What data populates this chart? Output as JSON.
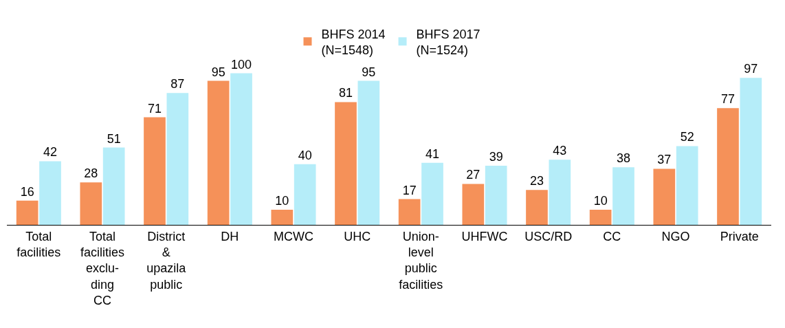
{
  "chart_data": {
    "type": "bar",
    "categories": [
      "Total\nfacilities",
      "Total\nfacilities\nexclu-\nding\nCC",
      "District\n&\nupazila\npublic",
      "DH",
      "MCWC",
      "UHC",
      "Union-\nlevel\npublic\nfacilities",
      "UHFWC",
      "USC/RD",
      "CC",
      "NGO",
      "Private"
    ],
    "series": [
      {
        "name": "BHFS 2014\n(N=1548)",
        "color": "#f59159",
        "values": [
          16,
          28,
          71,
          95,
          10,
          81,
          17,
          27,
          23,
          10,
          37,
          77
        ]
      },
      {
        "name": "BHFS 2017\n(N=1524)",
        "color": "#b5edf9",
        "values": [
          42,
          51,
          87,
          100,
          40,
          95,
          41,
          39,
          43,
          38,
          52,
          97
        ]
      }
    ],
    "data_labels": true,
    "legend": "top"
  }
}
